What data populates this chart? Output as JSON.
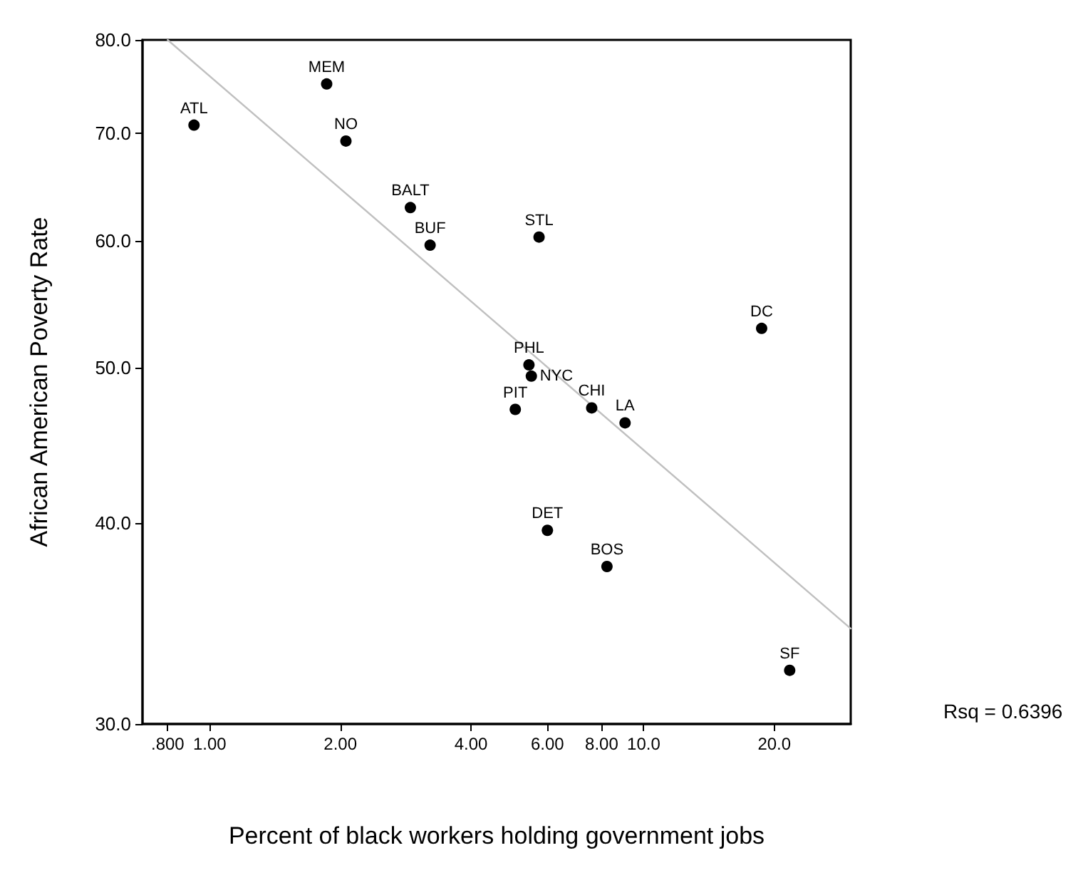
{
  "chart_data": {
    "type": "scatter",
    "xlabel": "Percent of black workers holding government jobs",
    "ylabel": "African American Poverty Rate",
    "log": "xy",
    "grid": false,
    "legend": false,
    "marker": "circle",
    "xlim": [
      0.7,
      30
    ],
    "ylim": [
      30,
      80
    ],
    "xticks": [
      {
        "value": 0.8,
        "label": ".800"
      },
      {
        "value": 1,
        "label": "1.00"
      },
      {
        "value": 2,
        "label": "2.00"
      },
      {
        "value": 4,
        "label": "4.00"
      },
      {
        "value": 6,
        "label": "6.00"
      },
      {
        "value": 8,
        "label": "8.00"
      },
      {
        "value": 10,
        "label": "10.0"
      },
      {
        "value": 20,
        "label": "20.0"
      }
    ],
    "yticks": [
      {
        "value": 30,
        "label": "30.0"
      },
      {
        "value": 40,
        "label": "40.0"
      },
      {
        "value": 50,
        "label": "50.0"
      },
      {
        "value": 60,
        "label": "60.0"
      },
      {
        "value": 70,
        "label": "70.0"
      },
      {
        "value": 80,
        "label": "80.0"
      }
    ],
    "annotations": [
      "Rsq = 0.6396"
    ],
    "series": [
      {
        "name": "ATL",
        "color": "#000000",
        "x": [
          0.92
        ],
        "values": [
          70.8
        ]
      },
      {
        "name": "MEM",
        "color": "#000000",
        "x": [
          1.86
        ],
        "values": [
          75.1
        ]
      },
      {
        "name": "NO",
        "color": "#000000",
        "x": [
          2.06
        ],
        "values": [
          69.2
        ]
      },
      {
        "name": "BALT",
        "color": "#000000",
        "x": [
          2.9
        ],
        "values": [
          62.9
        ]
      },
      {
        "name": "BUF",
        "color": "#000000",
        "x": [
          3.22
        ],
        "values": [
          59.6
        ]
      },
      {
        "name": "STL",
        "color": "#000000",
        "x": [
          5.74
        ],
        "values": [
          60.3
        ]
      },
      {
        "name": "PHL",
        "color": "#000000",
        "x": [
          5.44
        ],
        "values": [
          50.2
        ]
      },
      {
        "name": "NYC",
        "color": "#000000",
        "x": [
          5.51
        ],
        "values": [
          49.4
        ]
      },
      {
        "name": "PIT",
        "color": "#000000",
        "x": [
          5.06
        ],
        "values": [
          47.1
        ]
      },
      {
        "name": "CHI",
        "color": "#000000",
        "x": [
          7.59
        ],
        "values": [
          47.2
        ]
      },
      {
        "name": "LA",
        "color": "#000000",
        "x": [
          9.06
        ],
        "values": [
          46.2
        ]
      },
      {
        "name": "DC",
        "color": "#000000",
        "x": [
          18.7
        ],
        "values": [
          52.9
        ]
      },
      {
        "name": "DET",
        "color": "#000000",
        "x": [
          6.0
        ],
        "values": [
          39.6
        ]
      },
      {
        "name": "BOS",
        "color": "#000000",
        "x": [
          8.23
        ],
        "values": [
          37.6
        ]
      },
      {
        "name": "SF",
        "color": "#000000",
        "x": [
          21.7
        ],
        "values": [
          32.4
        ]
      },
      {
        "type": "line",
        "color": "#c0c0c0",
        "marker": "none",
        "x": [
          0.8,
          30
        ],
        "values": [
          80,
          34.4
        ]
      }
    ]
  }
}
